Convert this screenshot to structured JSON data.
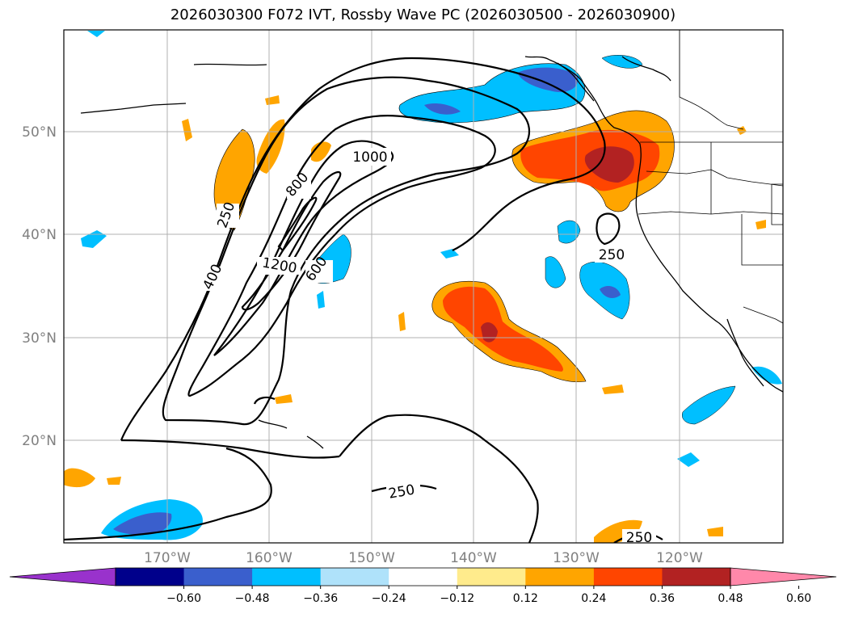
{
  "title": "2026030300 F072 IVT, Rossby Wave PC (2026030500 - 2026030900)",
  "lat_labels": [
    "50°N",
    "40°N",
    "30°N",
    "20°N"
  ],
  "lon_labels": [
    "170°W",
    "160°W",
    "150°W",
    "140°W",
    "130°W",
    "120°W"
  ],
  "colorbar": {
    "colors": [
      "#9932cc",
      "#00008b",
      "#3a5fcd",
      "#00bfff",
      "#afe2fa",
      "#ffffff",
      "#ffeb8c",
      "#ffa500",
      "#ff4500",
      "#b22222",
      "#ff88aa"
    ],
    "tick_labels": [
      "−0.60",
      "−0.48",
      "−0.36",
      "−0.24",
      "−0.12",
      "0.12",
      "0.24",
      "0.36",
      "0.48",
      "0.60"
    ]
  },
  "contour_labels": [
    "250",
    "400",
    "600",
    "800",
    "1000",
    "1200",
    "250",
    "250",
    "250"
  ]
}
